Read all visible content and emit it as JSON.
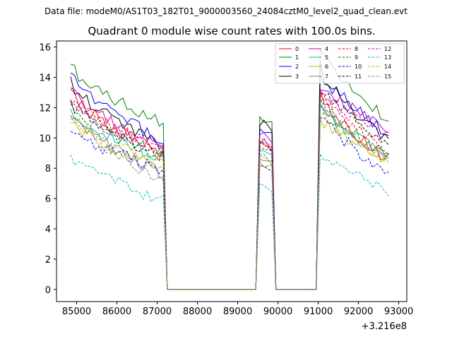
{
  "figure": {
    "suptitle": "Data file: modeM0/AS1T03_182T01_9000003560_24084cztM0_level2_quad_clean.evt"
  },
  "chart_data": {
    "type": "line",
    "title": "Quadrant 0 module wise count rates with 100.0s bins.",
    "xlabel": "",
    "ylabel": "",
    "x_offset_label": "+3.216e8",
    "xlim": [
      84500,
      93200
    ],
    "ylim": [
      -0.8,
      16.4
    ],
    "x_ticks": [
      85000,
      86000,
      87000,
      88000,
      89000,
      90000,
      91000,
      92000,
      93000
    ],
    "x_tick_labels": [
      "85000",
      "86000",
      "87000",
      "88000",
      "89000",
      "90000",
      "91000",
      "92000",
      "93000"
    ],
    "y_ticks": [
      0,
      2,
      4,
      6,
      8,
      10,
      12,
      14,
      16
    ],
    "y_tick_labels": [
      "0",
      "2",
      "4",
      "6",
      "8",
      "10",
      "12",
      "14",
      "16"
    ],
    "legend_position": "top-right",
    "segments": [
      {
        "x_start": 84850,
        "x_end": 87150,
        "active": true
      },
      {
        "x_start": 87250,
        "x_end": 89450,
        "active": false
      },
      {
        "x_start": 89550,
        "x_end": 89850,
        "active": true
      },
      {
        "x_start": 89950,
        "x_end": 90950,
        "active": false
      },
      {
        "x_start": 91050,
        "x_end": 92750,
        "active": true
      }
    ],
    "series": [
      {
        "name": "0",
        "color": "#ff0000",
        "dash": "solid",
        "start": 13.0,
        "end_first": 9.0,
        "peak_mid": 9.8,
        "second_peak": 12.8,
        "end": 8.6
      },
      {
        "name": "1",
        "color": "#008000",
        "dash": "solid",
        "start": 14.8,
        "end_first": 11.0,
        "peak_mid": 11.4,
        "second_peak": 15.6,
        "end": 11.1
      },
      {
        "name": "2",
        "color": "#0000ff",
        "dash": "solid",
        "start": 14.3,
        "end_first": 9.8,
        "peak_mid": 10.6,
        "second_peak": 14.4,
        "end": 10.2
      },
      {
        "name": "3",
        "color": "#000000",
        "dash": "solid",
        "start": 13.6,
        "end_first": 9.6,
        "peak_mid": 10.8,
        "second_peak": 14.6,
        "end": 9.6
      },
      {
        "name": "4",
        "color": "#bf00bf",
        "dash": "solid",
        "start": 13.2,
        "end_first": 9.4,
        "peak_mid": 10.2,
        "second_peak": 13.6,
        "end": 10.4
      },
      {
        "name": "5",
        "color": "#00bfa0",
        "dash": "solid",
        "start": 12.0,
        "end_first": 8.6,
        "peak_mid": 9.2,
        "second_peak": 12.0,
        "end": 8.8
      },
      {
        "name": "6",
        "color": "#bfbf00",
        "dash": "solid",
        "start": 11.2,
        "end_first": 8.0,
        "peak_mid": 8.4,
        "second_peak": 11.4,
        "end": 8.4
      },
      {
        "name": "7",
        "color": "#808080",
        "dash": "solid",
        "start": 11.6,
        "end_first": 7.6,
        "peak_mid": 8.6,
        "second_peak": 11.8,
        "end": 8.8
      },
      {
        "name": "8",
        "color": "#ff0000",
        "dash": "dashed",
        "start": 12.8,
        "end_first": 9.2,
        "peak_mid": 9.8,
        "second_peak": 13.0,
        "end": 9.0
      },
      {
        "name": "9",
        "color": "#008000",
        "dash": "dashed",
        "start": 12.2,
        "end_first": 8.8,
        "peak_mid": 9.4,
        "second_peak": 12.4,
        "end": 8.8
      },
      {
        "name": "10",
        "color": "#0000ff",
        "dash": "dashed",
        "start": 10.8,
        "end_first": 7.8,
        "peak_mid": 8.2,
        "second_peak": 11.6,
        "end": 7.6
      },
      {
        "name": "11",
        "color": "#000000",
        "dash": "dashed",
        "start": 12.4,
        "end_first": 8.8,
        "peak_mid": 9.6,
        "second_peak": 13.4,
        "end": 9.6
      },
      {
        "name": "12",
        "color": "#bf00bf",
        "dash": "dashed",
        "start": 12.6,
        "end_first": 9.0,
        "peak_mid": 9.6,
        "second_peak": 13.0,
        "end": 10.0
      },
      {
        "name": "13",
        "color": "#00bfbf",
        "dash": "dashed",
        "start": 9.0,
        "end_first": 5.8,
        "peak_mid": 7.0,
        "second_peak": 9.2,
        "end": 6.4
      },
      {
        "name": "14",
        "color": "#bfbf00",
        "dash": "dashed",
        "start": 11.4,
        "end_first": 8.2,
        "peak_mid": 8.8,
        "second_peak": 11.8,
        "end": 8.6
      },
      {
        "name": "15",
        "color": "#808080",
        "dash": "dashed",
        "start": 11.8,
        "end_first": 7.2,
        "peak_mid": 8.8,
        "second_peak": 12.2,
        "end": 8.6
      }
    ]
  }
}
